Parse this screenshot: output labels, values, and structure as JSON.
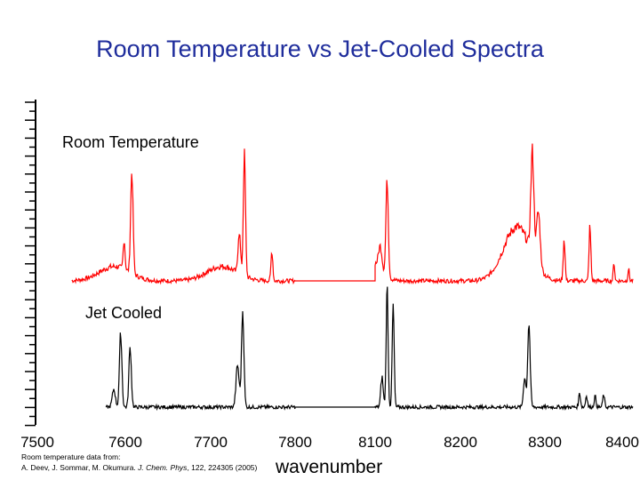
{
  "chart_data": {
    "type": "line",
    "title": "Room Temperature vs Jet-Cooled Spectra",
    "xlabel": "wavenumber",
    "ylabel": "",
    "x_segments": [
      [
        7500,
        7800
      ],
      [
        8100,
        8400
      ]
    ],
    "xticks": [
      "7500",
      "7600",
      "7700",
      "7800",
      "8100",
      "8200",
      "8300",
      "8400"
    ],
    "series": [
      {
        "name": "Room Temperature",
        "color": "#ff0000",
        "baseline": 0.0,
        "peaks": [
          {
            "x": 7610,
            "h": 0.85,
            "w": 2.0
          },
          {
            "x": 7601,
            "h": 0.25,
            "w": 1.5
          },
          {
            "x": 7741,
            "h": 1.0,
            "w": 1.8
          },
          {
            "x": 7735,
            "h": 0.35,
            "w": 2.0
          },
          {
            "x": 7773,
            "h": 0.25,
            "w": 1.5
          },
          {
            "x": 8114,
            "h": 0.8,
            "w": 2.0
          },
          {
            "x": 8106,
            "h": 0.2,
            "w": 3.0
          },
          {
            "x": 8283,
            "h": 0.85,
            "w": 2.5
          },
          {
            "x": 8290,
            "h": 0.45,
            "w": 3.0
          },
          {
            "x": 8320,
            "h": 0.35,
            "w": 1.5
          },
          {
            "x": 8350,
            "h": 0.45,
            "w": 1.5
          },
          {
            "x": 8378,
            "h": 0.15,
            "w": 1.2
          },
          {
            "x": 8395,
            "h": 0.1,
            "w": 1.2
          }
        ],
        "bands": [
          {
            "x": 7590,
            "h": 0.12,
            "w": 25
          },
          {
            "x": 7715,
            "h": 0.12,
            "w": 25
          },
          {
            "x": 8090,
            "h": 0.2,
            "w": 18
          },
          {
            "x": 8265,
            "h": 0.45,
            "w": 22
          }
        ]
      },
      {
        "name": "Jet Cooled",
        "color": "#000000",
        "baseline": 0.0,
        "peaks": [
          {
            "x": 7597,
            "h": 0.62,
            "w": 2.0
          },
          {
            "x": 7608,
            "h": 0.5,
            "w": 2.0
          },
          {
            "x": 7589,
            "h": 0.15,
            "w": 2.5
          },
          {
            "x": 7739,
            "h": 0.8,
            "w": 2.0
          },
          {
            "x": 7733,
            "h": 0.35,
            "w": 2.5
          },
          {
            "x": 8114,
            "h": 1.0,
            "w": 1.6
          },
          {
            "x": 8121,
            "h": 0.85,
            "w": 1.6
          },
          {
            "x": 8108,
            "h": 0.25,
            "w": 2.0
          },
          {
            "x": 8279,
            "h": 0.7,
            "w": 2.0
          },
          {
            "x": 8274,
            "h": 0.25,
            "w": 2.0
          },
          {
            "x": 8338,
            "h": 0.12,
            "w": 1.5
          },
          {
            "x": 8346,
            "h": 0.1,
            "w": 1.5
          },
          {
            "x": 8356,
            "h": 0.09,
            "w": 1.5
          },
          {
            "x": 8366,
            "h": 0.1,
            "w": 1.5
          }
        ],
        "bands": []
      }
    ]
  },
  "labels": {
    "room_temperature": "Room Temperature",
    "jet_cooled": "Jet Cooled"
  },
  "citation": {
    "line1": "Room temperature data from:",
    "line2_pre": "A. Deev, J. Sommar, M. Okumura. ",
    "journal": "J. Chem. Phys",
    "line2_post": ", 122, 224305 (2005)"
  },
  "colors": {
    "title": "#1f2d9c",
    "room": "#ff0000",
    "jet": "#000000"
  }
}
